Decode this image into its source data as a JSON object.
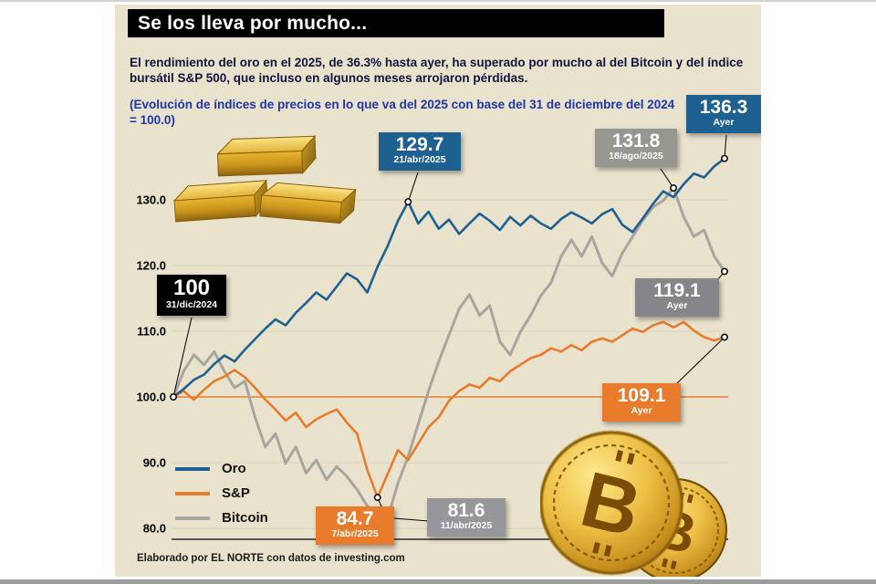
{
  "header": {
    "title": "Se los lleva por mucho...",
    "intro": "El rendimiento del oro en el 2025, de 36.3% hasta ayer, ha superado por mucho al del Bitcoin y del índice bursátil S&P 500, que incluso en algunos meses arrojaron pérdidas.",
    "note": "(Evolución de índices de precios en lo que va del 2025 con base del 31 de diciembre del 2024 = 100.0)"
  },
  "axis": {
    "y_ticks": [
      "130.0",
      "120.0",
      "110.0",
      "100.0",
      "90.0",
      "80.0"
    ]
  },
  "legend": [
    {
      "label": "Oro",
      "color": "#1e6191"
    },
    {
      "label": "S&P",
      "color": "#e87c2c"
    },
    {
      "label": "Bitcoin",
      "color": "#a8a5a0"
    }
  ],
  "callouts": [
    {
      "id": "start",
      "value": "100",
      "date": "31/dic/2024",
      "bg": "#000000"
    },
    {
      "id": "oro-apr",
      "value": "129.7",
      "date": "21/abr/2025",
      "bg": "#1e6191"
    },
    {
      "id": "btc-aug",
      "value": "131.8",
      "date": "18/ago/2025",
      "bg": "#98978f"
    },
    {
      "id": "oro-ayer",
      "value": "136.3",
      "date": "Ayer",
      "bg": "#1e6191"
    },
    {
      "id": "btc-ayer",
      "value": "119.1",
      "date": "Ayer",
      "bg": "#86858a"
    },
    {
      "id": "sp-ayer",
      "value": "109.1",
      "date": "Ayer",
      "bg": "#e87c2c"
    },
    {
      "id": "sp-apr",
      "value": "84.7",
      "date": "7/abr/2025",
      "bg": "#e87c2c"
    },
    {
      "id": "btc-apr",
      "value": "81.6",
      "date": "11/abr/2025",
      "bg": "#97969b"
    }
  ],
  "footer": {
    "credit": "Elaborado por EL NORTE con datos de investing.com"
  },
  "colors": {
    "panel_background": "#e9e2cc",
    "title_bar": "#000000",
    "oro": "#1e6191",
    "sp": "#e87c2c",
    "bitcoin": "#a8a5a0",
    "baseline_100": "#e87c2c"
  },
  "chart_data": {
    "type": "line",
    "title": "Evolución de índices de precios en lo que va del 2025 (31/dic/2024 = 100.0)",
    "x_start_label": "31/dic/2024",
    "x_end_label": "Ayer",
    "ylim": [
      78,
      140
    ],
    "y_ticks": [
      130,
      120,
      110,
      100,
      90,
      80
    ],
    "baseline": 100,
    "grid": "subtle-horizontal",
    "legend_position": "bottom-left",
    "series": [
      {
        "name": "Oro",
        "color": "#1e6191",
        "values": [
          100.0,
          101.2,
          102.6,
          103.4,
          105.0,
          106.3,
          105.4,
          107.2,
          108.8,
          110.4,
          111.8,
          110.9,
          112.8,
          114.3,
          115.9,
          114.8,
          116.8,
          118.8,
          117.9,
          115.9,
          119.8,
          123.0,
          126.8,
          129.7,
          126.4,
          128.2,
          125.6,
          127.0,
          124.8,
          126.4,
          127.9,
          126.8,
          125.4,
          127.4,
          126.1,
          127.6,
          126.4,
          125.6,
          127.1,
          128.1,
          127.3,
          126.4,
          127.8,
          128.6,
          126.2,
          125.1,
          127.2,
          129.4,
          131.3,
          130.4,
          132.4,
          134.0,
          133.4,
          135.1,
          136.3
        ]
      },
      {
        "name": "S&P",
        "color": "#e87c2c",
        "values": [
          100.0,
          100.9,
          99.6,
          101.1,
          102.4,
          103.1,
          104.1,
          103.0,
          101.4,
          99.6,
          98.1,
          96.4,
          97.6,
          95.4,
          96.6,
          97.4,
          98.1,
          96.1,
          94.4,
          88.9,
          84.7,
          88.3,
          91.9,
          90.4,
          92.9,
          95.4,
          96.9,
          99.4,
          100.9,
          101.9,
          101.4,
          102.9,
          102.4,
          103.9,
          104.9,
          105.9,
          106.4,
          107.4,
          106.9,
          107.9,
          107.1,
          108.4,
          108.9,
          108.4,
          109.4,
          110.4,
          109.9,
          110.9,
          111.4,
          110.6,
          111.4,
          110.1,
          109.1,
          108.6,
          109.1
        ]
      },
      {
        "name": "Bitcoin",
        "color": "#a8a5a0",
        "values": [
          100.0,
          103.9,
          106.4,
          104.9,
          106.9,
          103.9,
          101.4,
          102.4,
          96.9,
          92.4,
          94.4,
          89.9,
          92.4,
          88.4,
          90.4,
          87.4,
          89.4,
          87.9,
          85.9,
          83.4,
          82.4,
          81.6,
          86.9,
          90.9,
          95.9,
          100.9,
          105.4,
          109.4,
          113.4,
          115.6,
          112.4,
          113.9,
          108.4,
          106.4,
          109.9,
          112.4,
          115.4,
          117.4,
          121.4,
          123.9,
          121.4,
          124.4,
          120.4,
          118.4,
          121.9,
          124.4,
          126.9,
          128.9,
          129.9,
          131.8,
          127.4,
          124.4,
          125.4,
          121.4,
          119.1
        ]
      }
    ],
    "markers": [
      {
        "id": "start",
        "series": "Oro",
        "index": 0,
        "value": 100.0,
        "label": "31/dic/2024"
      },
      {
        "id": "oro-apr",
        "series": "Oro",
        "index": 23,
        "value": 129.7,
        "label": "21/abr/2025"
      },
      {
        "id": "sp-apr",
        "series": "S&P",
        "index": 20,
        "value": 84.7,
        "label": "7/abr/2025"
      },
      {
        "id": "btc-apr",
        "series": "Bitcoin",
        "index": 21,
        "value": 81.6,
        "label": "11/abr/2025"
      },
      {
        "id": "btc-aug",
        "series": "Bitcoin",
        "index": 49,
        "value": 131.8,
        "label": "18/ago/2025"
      },
      {
        "id": "oro-ayer",
        "series": "Oro",
        "index": 54,
        "value": 136.3,
        "label": "Ayer"
      },
      {
        "id": "btc-ayer",
        "series": "Bitcoin",
        "index": 54,
        "value": 119.1,
        "label": "Ayer"
      },
      {
        "id": "sp-ayer",
        "series": "S&P",
        "index": 54,
        "value": 109.1,
        "label": "Ayer"
      }
    ]
  }
}
